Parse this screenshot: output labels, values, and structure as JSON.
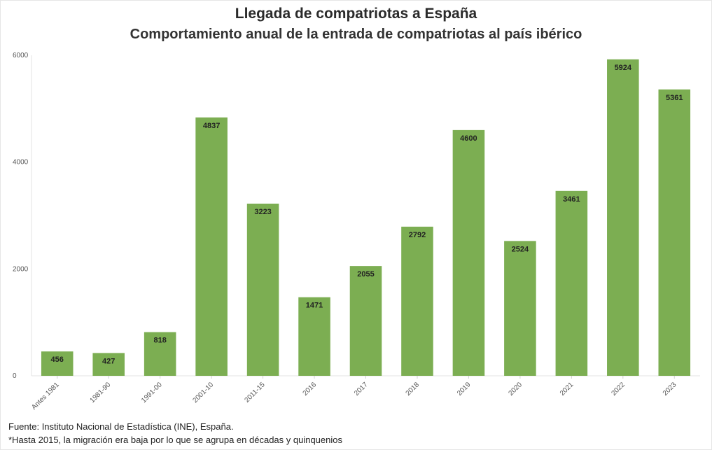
{
  "chart_data": {
    "type": "bar",
    "title": "Llegada de compatriotas a España",
    "subtitle": "Comportamiento anual de la entrada de compatriotas al país ibérico",
    "xlabel": "",
    "ylabel": "",
    "categories": [
      "Antes 1981",
      "1981-90",
      "1991-00",
      "2001-10",
      "2011-15",
      "2016",
      "2017",
      "2018",
      "2019",
      "2020",
      "2021",
      "2022",
      "2023"
    ],
    "values": [
      456,
      427,
      818,
      4837,
      3223,
      1471,
      2055,
      2792,
      4600,
      2524,
      3461,
      5924,
      5361
    ],
    "ylim": [
      0,
      6000
    ],
    "yticks": [
      "0",
      "2000",
      "4000",
      "6000"
    ],
    "bar_color": "#7cae52",
    "grid": false,
    "legend": "none"
  },
  "footer": {
    "source": "Fuente: Instituto Nacional de Estadística (INE), España.",
    "note": "*Hasta 2015, la migración era baja por lo que se agrupa en décadas y quinquenios"
  }
}
